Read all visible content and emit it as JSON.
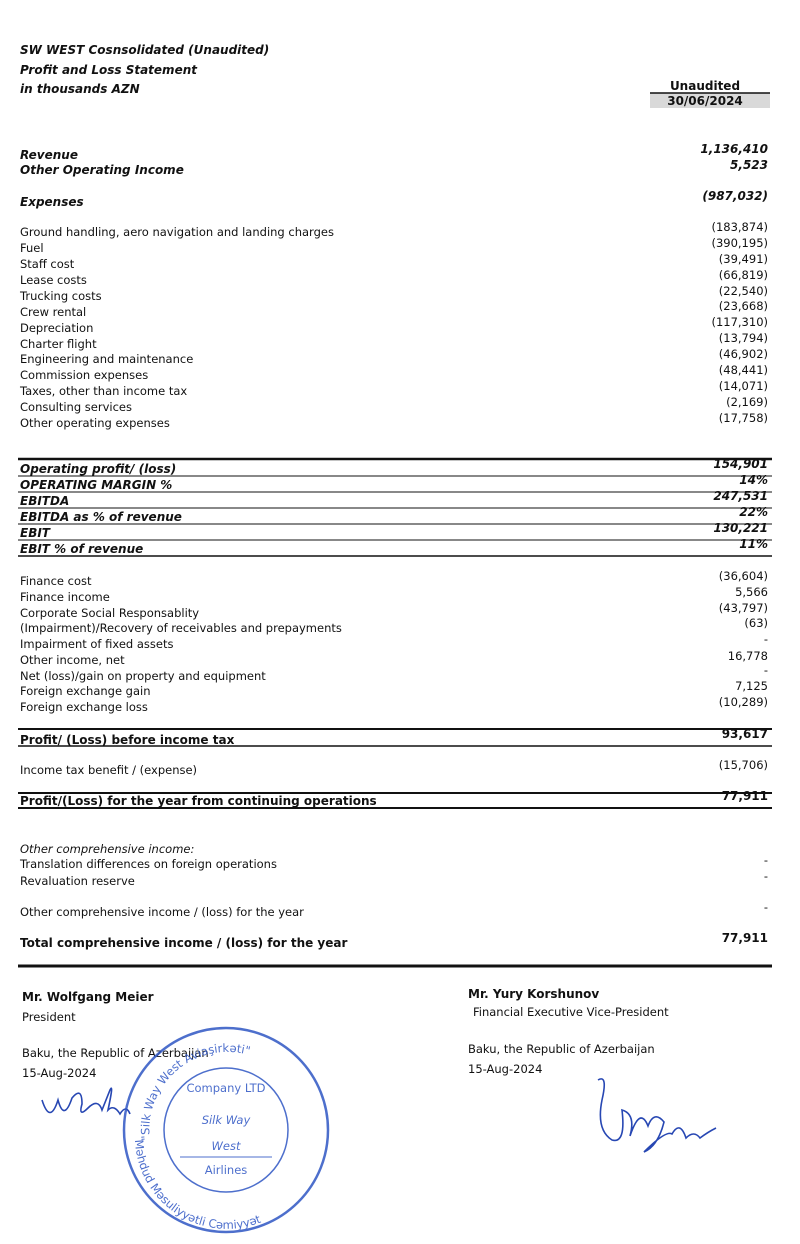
{
  "header": {
    "title": "SW WEST Cosnsolidated (Unaudited)",
    "subtitle": "Profit and Loss Statement",
    "units": "in thousands AZN",
    "column_label": "Unaudited",
    "period": "30/06/2024"
  },
  "rows": [
    {
      "label": "Revenue",
      "value": "1,136,410"
    },
    {
      "label": "Other Operating Income",
      "value": "5,523"
    },
    {
      "label": "Expenses",
      "value": "(987,032)"
    },
    {
      "label": "Ground handling, aero navigation and landing charges",
      "value": "(183,874)"
    },
    {
      "label": "Fuel",
      "value": "(390,195)"
    },
    {
      "label": "Staff cost",
      "value": "(39,491)"
    },
    {
      "label": "Lease costs",
      "value": "(66,819)"
    },
    {
      "label": "Trucking costs",
      "value": "(22,540)"
    },
    {
      "label": "Crew rental",
      "value": "(23,668)"
    },
    {
      "label": "Depreciation",
      "value": "(117,310)"
    },
    {
      "label": "Charter flight",
      "value": "(13,794)"
    },
    {
      "label": "Engineering and maintenance",
      "value": "(46,902)"
    },
    {
      "label": "Commission expenses",
      "value": "(48,441)"
    },
    {
      "label": "Taxes, other than income tax",
      "value": "(14,071)"
    },
    {
      "label": "Consulting services",
      "value": "(2,169)"
    },
    {
      "label": "Other operating expenses",
      "value": "(17,758)"
    },
    {
      "label": "Operating profit/ (loss)",
      "value": "154,901"
    },
    {
      "label": "OPERATING MARGIN %",
      "value": "14%"
    },
    {
      "label": "EBITDA",
      "value": "247,531"
    },
    {
      "label": "EBITDA as % of revenue",
      "value": "22%"
    },
    {
      "label": "EBIT",
      "value": "130,221"
    },
    {
      "label": "EBIT % of revenue",
      "value": "11%"
    },
    {
      "label": "Finance cost",
      "value": "(36,604)"
    },
    {
      "label": "Finance income",
      "value": "5,566"
    },
    {
      "label": "Corporate Social Responsablity",
      "value": "(43,797)"
    },
    {
      "label": "(Impairment)/Recovery of receivables and prepayments",
      "value": "(63)"
    },
    {
      "label": "Impairment of fixed assets",
      "value": "-"
    },
    {
      "label": "Other income, net",
      "value": "16,778"
    },
    {
      "label": "Net (loss)/gain on property and equipment",
      "value": "-"
    },
    {
      "label": "Foreign exchange gain",
      "value": "7,125"
    },
    {
      "label": "Foreign exchange loss",
      "value": "(10,289)"
    },
    {
      "label": "Profit/ (Loss) before income tax",
      "value": "93,617"
    },
    {
      "label": "Income tax benefit / (expense)",
      "value": "(15,706)"
    },
    {
      "label": "Profit/(Loss) for the year from continuing operations",
      "value": "77,911"
    },
    {
      "label": "Other comprehensive income:"
    },
    {
      "label": "Translation differences on foreign operations",
      "value": "-"
    },
    {
      "label": "Revaluation reserve",
      "value": "-"
    },
    {
      "label": "Other comprehensive income / (loss) for the year",
      "value": "-"
    },
    {
      "label": "Total comprehensive income / (loss) for the year",
      "value": "77,911"
    }
  ],
  "signatures": [
    {
      "name": "Mr. Wolfgang Meier",
      "position": "President",
      "place": "Baku, the Republic of Azerbaijan",
      "date": "15-Aug-2024"
    },
    {
      "name": "Mr. Yury Korshunov",
      "position": "Financial Executive Vice-President",
      "place": "Baku, the Republic of Azerbaijan",
      "date": "15-Aug-2024"
    }
  ],
  "stamp": {
    "top_arc": "\"Silk Way West Aviaşirkəti\"",
    "company": "Company LTD",
    "brand_line1": "Silk Way",
    "brand_line2": "West",
    "brand_line3": "Airlines",
    "bottom_arc": "Məhdud Məsuliyyətli Cəmiyyət"
  }
}
